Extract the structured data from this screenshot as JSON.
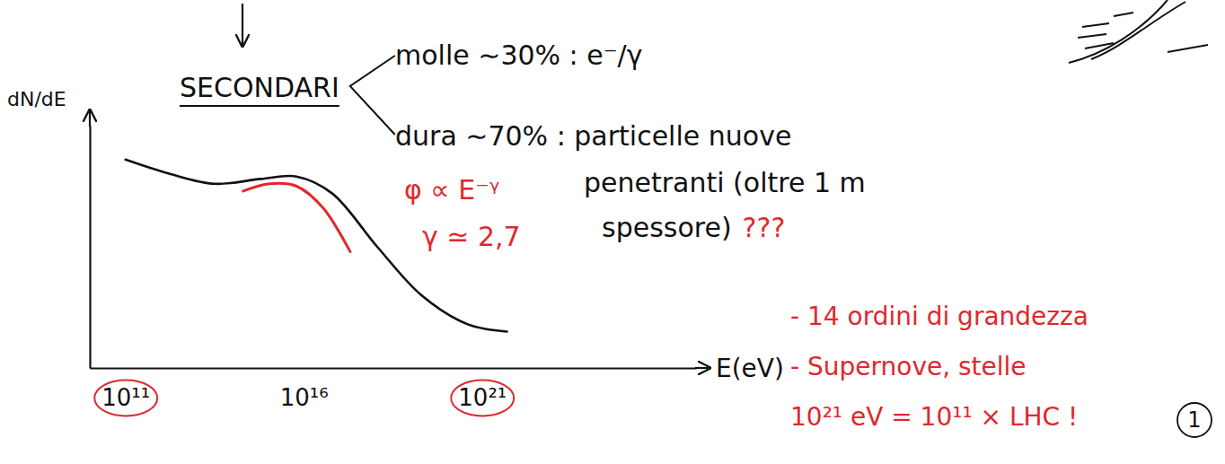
{
  "notes": {
    "heading": "SECONDARI",
    "branches": [
      {
        "lines": [
          "molle ∼30% : e⁻/γ"
        ]
      },
      {
        "lines": [
          "dura ∼70% : particelle nuove",
          "penetranti (oltre 1 m",
          "spessore)"
        ],
        "query": "???"
      }
    ],
    "remarks": [
      "- 14 ordini di grandezza",
      "- Supernove, stelle",
      "10²¹ eV = 10¹¹ × LHC !"
    ],
    "page": "1"
  },
  "chart_data": {
    "type": "line",
    "x_label": "E(eV)",
    "y_label": "dN/dE",
    "log": "x",
    "xlim": [
      10000000000.0,
      1e+27
    ],
    "ylim": [
      0,
      10
    ],
    "xticks": [
      {
        "value": 100000000000.0,
        "label": "10¹¹"
      },
      {
        "value": 1e+16,
        "label": "10¹⁶"
      },
      {
        "value": 1e+21,
        "label": "10²¹"
      }
    ],
    "yticks": [],
    "tick_labels": "x",
    "series": [
      {
        "color": "#111111",
        "x": [
          100000000000.0,
          1860000000000.0,
          31600000000000.0,
          630000000000000.0,
          6300000000000000.0,
          6.3e+16,
          1.15e+18,
          2e+19,
          4e+20,
          5e+21
        ],
        "values": [
          8.6,
          8.0,
          7.6,
          7.8,
          7.9,
          7.2,
          5.0,
          3.0,
          1.8,
          1.5
        ]
      },
      {
        "color": "#e0282e",
        "x": [
          200000000000000.0,
          1100000000000000.0,
          6300000000000000.0,
          3.5e+16,
          2e+17
        ],
        "values": [
          7.3,
          7.6,
          7.5,
          6.6,
          4.8
        ]
      }
    ],
    "annotations": [
      {
        "text": "φ ∝ E⁻ᵞ",
        "color": "#e0282e"
      },
      {
        "text": "γ ≃ 2,7",
        "color": "#e0282e"
      }
    ]
  }
}
